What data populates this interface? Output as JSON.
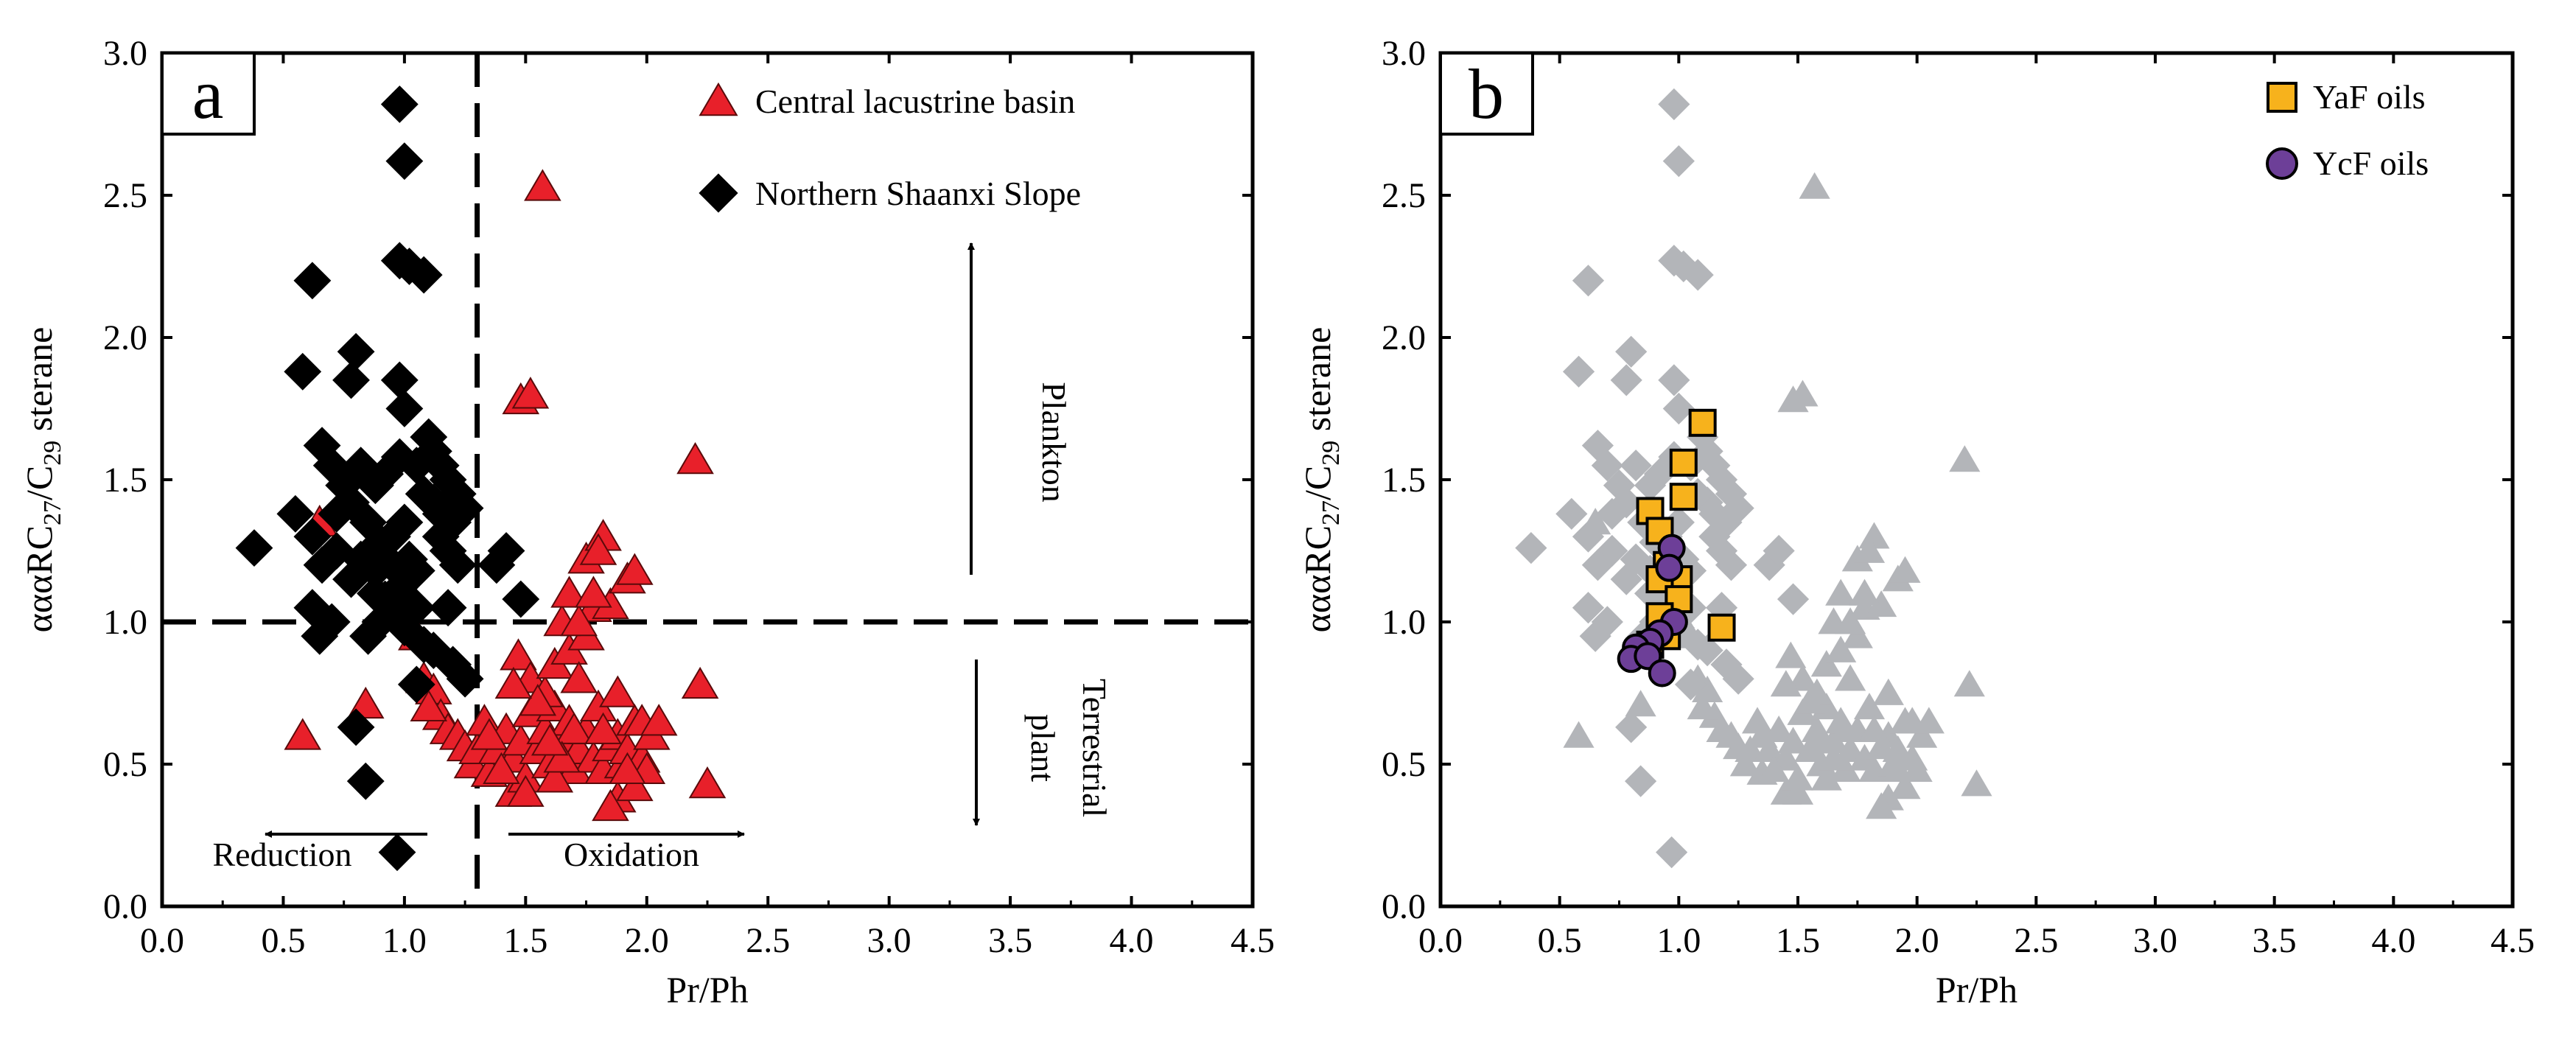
{
  "chart_data": [
    {
      "type": "scatter",
      "panel_label": "a",
      "xlabel": "Pr/Ph",
      "ylabel": "αααRC27/C29 sterane",
      "ylabel_parts": {
        "prefix": "αααRC",
        "sub1": "27",
        "mid": "/C",
        "sub2": "29",
        "suffix": " sterane"
      },
      "xlim": [
        0.0,
        4.5
      ],
      "ylim": [
        0.0,
        3.0
      ],
      "xticks": [
        "0.0",
        "0.5",
        "1.0",
        "1.5",
        "2.0",
        "2.5",
        "3.0",
        "3.5",
        "4.0",
        "4.5"
      ],
      "yticks": [
        "0.0",
        "0.5",
        "1.0",
        "1.5",
        "2.0",
        "2.5",
        "3.0"
      ],
      "reference_lines": {
        "x": 1.3,
        "y": 1.0
      },
      "annotations": {
        "plankton": "Plankton",
        "terrestrial_line1": "Terrestrial",
        "terrestrial_line2": "plant",
        "reduction": "Reduction",
        "oxidation": "Oxidation"
      },
      "legend": [
        {
          "name": "Central  lacustrine  basin",
          "marker": "triangle",
          "color": "#e8202a"
        },
        {
          "name": "Northern Shaanxi Slope",
          "marker": "diamond",
          "color": "#000000"
        }
      ],
      "series": [
        {
          "name": "Central lacustrine basin",
          "marker": "triangle",
          "color": "#e8202a",
          "points": [
            [
              0.65,
              1.35
            ],
            [
              0.58,
              0.6
            ],
            [
              0.84,
              0.71
            ],
            [
              1.05,
              0.95
            ],
            [
              1.08,
              0.8
            ],
            [
              1.12,
              0.76
            ],
            [
              1.15,
              0.67
            ],
            [
              1.18,
              0.62
            ],
            [
              1.1,
              0.7
            ],
            [
              1.22,
              0.6
            ],
            [
              1.25,
              0.56
            ],
            [
              1.28,
              0.5
            ],
            [
              1.3,
              0.55
            ],
            [
              1.33,
              0.65
            ],
            [
              1.35,
              0.47
            ],
            [
              1.38,
              0.55
            ],
            [
              1.42,
              0.62
            ],
            [
              1.45,
              0.52
            ],
            [
              1.45,
              0.4
            ],
            [
              1.48,
              0.58
            ],
            [
              1.5,
              0.45
            ],
            [
              1.52,
              0.68
            ],
            [
              1.55,
              0.55
            ],
            [
              1.58,
              0.62
            ],
            [
              1.6,
              0.5
            ],
            [
              1.62,
              0.7
            ],
            [
              1.65,
              0.58
            ],
            [
              1.68,
              0.65
            ],
            [
              1.7,
              0.48
            ],
            [
              1.72,
              0.55
            ],
            [
              1.75,
              0.62
            ],
            [
              1.78,
              0.52
            ],
            [
              1.8,
              0.7
            ],
            [
              1.82,
              0.48
            ],
            [
              1.85,
              0.56
            ],
            [
              1.88,
              0.6
            ],
            [
              1.9,
              0.5
            ],
            [
              1.92,
              0.55
            ],
            [
              1.95,
              0.65
            ],
            [
              1.98,
              0.52
            ],
            [
              2.0,
              0.48
            ],
            [
              2.02,
              0.6
            ],
            [
              1.88,
              0.38
            ],
            [
              1.85,
              0.35
            ],
            [
              1.95,
              0.42
            ],
            [
              1.5,
              0.4
            ],
            [
              1.47,
              0.88
            ],
            [
              1.52,
              0.8
            ],
            [
              1.58,
              0.75
            ],
            [
              1.62,
              0.85
            ],
            [
              1.68,
              0.9
            ],
            [
              1.72,
              0.8
            ],
            [
              1.75,
              0.95
            ],
            [
              1.78,
              1.05
            ],
            [
              1.65,
              1.0
            ],
            [
              1.68,
              1.1
            ],
            [
              1.72,
              1.0
            ],
            [
              1.75,
              1.22
            ],
            [
              1.82,
              1.3
            ],
            [
              1.8,
              1.25
            ],
            [
              1.85,
              1.06
            ],
            [
              1.78,
              1.1
            ],
            [
              1.92,
              1.15
            ],
            [
              1.95,
              1.18
            ],
            [
              1.48,
              1.78
            ],
            [
              1.52,
              1.8
            ],
            [
              1.57,
              2.53
            ],
            [
              2.2,
              1.57
            ],
            [
              2.22,
              0.78
            ],
            [
              2.25,
              0.43
            ],
            [
              1.98,
              0.65
            ],
            [
              1.7,
              0.62
            ],
            [
              1.62,
              0.45
            ],
            [
              1.55,
              0.72
            ],
            [
              1.92,
              0.48
            ],
            [
              2.05,
              0.65
            ],
            [
              1.45,
              0.78
            ],
            [
              1.4,
              0.48
            ],
            [
              1.65,
              0.52
            ],
            [
              1.88,
              0.75
            ],
            [
              1.35,
              0.6
            ],
            [
              1.6,
              0.58
            ],
            [
              1.82,
              0.62
            ]
          ]
        },
        {
          "name": "Northern Shaanxi Slope",
          "marker": "diamond",
          "color": "#000000",
          "points": [
            [
              0.98,
              2.82
            ],
            [
              1.0,
              2.62
            ],
            [
              0.98,
              2.27
            ],
            [
              1.02,
              2.25
            ],
            [
              1.08,
              2.22
            ],
            [
              0.62,
              2.2
            ],
            [
              0.58,
              1.88
            ],
            [
              0.8,
              1.95
            ],
            [
              0.98,
              1.85
            ],
            [
              0.78,
              1.85
            ],
            [
              1.0,
              1.75
            ],
            [
              1.1,
              1.65
            ],
            [
              1.12,
              1.6
            ],
            [
              1.15,
              1.55
            ],
            [
              1.18,
              1.5
            ],
            [
              1.22,
              1.45
            ],
            [
              1.05,
              1.55
            ],
            [
              0.98,
              1.58
            ],
            [
              0.92,
              1.52
            ],
            [
              0.88,
              1.48
            ],
            [
              0.82,
              1.55
            ],
            [
              0.75,
              1.48
            ],
            [
              0.7,
              1.55
            ],
            [
              0.66,
              1.62
            ],
            [
              0.72,
              1.38
            ],
            [
              0.78,
              1.42
            ],
            [
              0.85,
              1.35
            ],
            [
              0.9,
              1.28
            ],
            [
              0.95,
              1.3
            ],
            [
              1.0,
              1.35
            ],
            [
              1.02,
              1.22
            ],
            [
              1.05,
              1.18
            ],
            [
              0.98,
              1.12
            ],
            [
              0.92,
              1.08
            ],
            [
              0.88,
              1.18
            ],
            [
              0.82,
              1.22
            ],
            [
              0.78,
              1.15
            ],
            [
              0.72,
              1.25
            ],
            [
              0.66,
              1.2
            ],
            [
              0.62,
              1.3
            ],
            [
              0.55,
              1.38
            ],
            [
              0.38,
              1.26
            ],
            [
              0.62,
              1.05
            ],
            [
              0.65,
              0.95
            ],
            [
              0.7,
              1.0
            ],
            [
              0.85,
              0.95
            ],
            [
              0.9,
              1.0
            ],
            [
              0.95,
              1.05
            ],
            [
              1.0,
              0.98
            ],
            [
              1.05,
              1.05
            ],
            [
              1.08,
              0.92
            ],
            [
              1.12,
              0.9
            ],
            [
              1.15,
              1.3
            ],
            [
              1.18,
              1.25
            ],
            [
              1.2,
              1.35
            ],
            [
              1.25,
              1.4
            ],
            [
              1.22,
              1.2
            ],
            [
              1.18,
              1.05
            ],
            [
              1.2,
              0.85
            ],
            [
              1.25,
              0.8
            ],
            [
              1.05,
              0.78
            ],
            [
              1.38,
              1.2
            ],
            [
              1.42,
              1.25
            ],
            [
              1.48,
              1.08
            ],
            [
              0.8,
              0.63
            ],
            [
              0.84,
              0.44
            ],
            [
              0.97,
              0.19
            ],
            [
              1.12,
              1.42
            ],
            [
              0.95,
              1.2
            ],
            [
              0.88,
              1.1
            ],
            [
              1.08,
              1.45
            ],
            [
              1.15,
              1.38
            ]
          ]
        }
      ]
    },
    {
      "type": "scatter",
      "panel_label": "b",
      "xlabel": "Pr/Ph",
      "ylabel": "αααRC27/C29 sterane",
      "ylabel_parts": {
        "prefix": "αααRC",
        "sub1": "27",
        "mid": "/C",
        "sub2": "29",
        "suffix": " sterane"
      },
      "xlim": [
        0.0,
        4.5
      ],
      "ylim": [
        0.0,
        3.0
      ],
      "xticks": [
        "0.0",
        "0.5",
        "1.0",
        "1.5",
        "2.0",
        "2.5",
        "3.0",
        "3.5",
        "4.0",
        "4.5"
      ],
      "yticks": [
        "0.0",
        "0.5",
        "1.0",
        "1.5",
        "2.0",
        "2.5",
        "3.0"
      ],
      "background_color": "#b3b5b9",
      "legend": [
        {
          "name": "YaF oils",
          "marker": "square",
          "color": "#f7b21c"
        },
        {
          "name": "YcF oils",
          "marker": "circle",
          "color": "#6d3f98"
        }
      ],
      "series": [
        {
          "name": "YaF oils",
          "marker": "square",
          "color": "#f7b21c",
          "points": [
            [
              1.1,
              1.7
            ],
            [
              1.02,
              1.56
            ],
            [
              1.02,
              1.44
            ],
            [
              0.88,
              1.39
            ],
            [
              0.92,
              1.32
            ],
            [
              0.95,
              1.2
            ],
            [
              1.0,
              1.15
            ],
            [
              0.92,
              1.15
            ],
            [
              1.0,
              1.08
            ],
            [
              0.92,
              1.02
            ],
            [
              1.18,
              0.98
            ],
            [
              0.95,
              0.95
            ],
            [
              0.88,
              0.92
            ]
          ]
        },
        {
          "name": "YcF oils",
          "marker": "circle",
          "color": "#6d3f98",
          "points": [
            [
              0.97,
              1.26
            ],
            [
              0.96,
              1.19
            ],
            [
              0.98,
              1.0
            ],
            [
              0.92,
              0.96
            ],
            [
              0.88,
              0.93
            ],
            [
              0.82,
              0.91
            ],
            [
              0.8,
              0.87
            ],
            [
              0.87,
              0.88
            ],
            [
              0.93,
              0.82
            ]
          ]
        }
      ]
    }
  ]
}
